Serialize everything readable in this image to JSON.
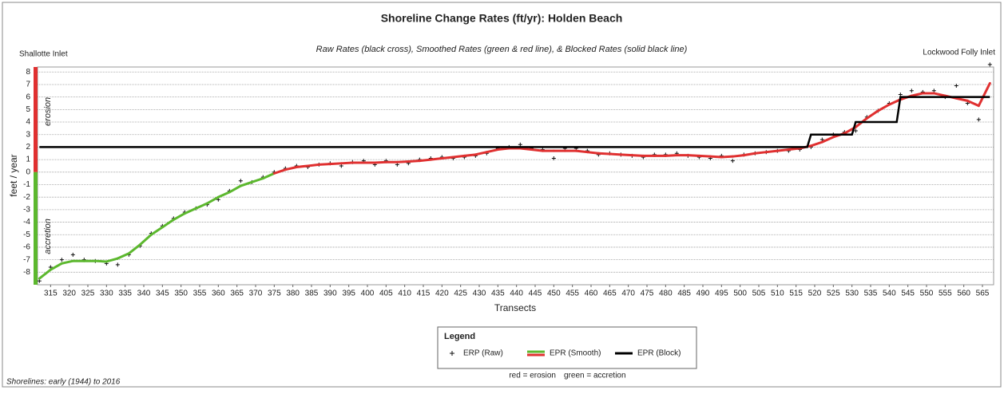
{
  "chart_data": {
    "type": "line",
    "title": "Shoreline Change Rates (ft/yr): Holden Beach",
    "subtitle": "Raw Rates (black cross), Smoothed Rates (green & red line), & Blocked Rates (solid black line)",
    "left_label": "Shallotte Inlet",
    "right_label": "Lockwood Folly Inlet",
    "y_label": "feet / year",
    "x_label": "Transects",
    "erosion_label": "erosion",
    "accretion_label": "accretion",
    "erosion_color": "#e03030",
    "accretion_color": "#5cb82e",
    "footnote": "Shorelines: early (1944) to 2016",
    "legend": {
      "title": "Legend",
      "note_red": "red = erosion",
      "note_green": "green = accretion"
    },
    "x": [
      312,
      315,
      318,
      321,
      324,
      327,
      330,
      333,
      336,
      339,
      342,
      345,
      348,
      351,
      354,
      357,
      360,
      363,
      366,
      369,
      372,
      375,
      378,
      381,
      384,
      387,
      390,
      393,
      396,
      399,
      402,
      405,
      408,
      411,
      414,
      417,
      420,
      423,
      426,
      429,
      432,
      435,
      438,
      441,
      444,
      447,
      450,
      453,
      456,
      459,
      462,
      465,
      468,
      471,
      474,
      477,
      480,
      483,
      486,
      489,
      492,
      495,
      498,
      501,
      504,
      507,
      510,
      513,
      516,
      519,
      522,
      525,
      528,
      531,
      534,
      537,
      540,
      543,
      546,
      549,
      552,
      555,
      558,
      561,
      564,
      567
    ],
    "series": [
      {
        "name": "ERP (Raw)",
        "color": "#111111",
        "marker": "cross",
        "values": [
          -8.7,
          -7.6,
          -7.0,
          -6.6,
          -7.0,
          -7.1,
          -7.3,
          -7.4,
          -6.6,
          -5.9,
          -4.9,
          -4.3,
          -3.7,
          -3.2,
          -2.9,
          -2.6,
          -2.2,
          -1.5,
          -0.7,
          -0.8,
          -0.4,
          0.0,
          0.3,
          0.5,
          0.4,
          0.6,
          0.7,
          0.5,
          0.8,
          0.9,
          0.6,
          0.9,
          0.6,
          0.7,
          1.0,
          1.1,
          1.2,
          1.1,
          1.2,
          1.3,
          1.5,
          1.9,
          2.0,
          2.2,
          1.9,
          1.8,
          1.1,
          1.9,
          1.9,
          1.7,
          1.4,
          1.5,
          1.4,
          1.3,
          1.2,
          1.4,
          1.4,
          1.5,
          1.3,
          1.2,
          1.1,
          1.3,
          0.9,
          1.4,
          1.5,
          1.6,
          1.7,
          1.7,
          1.8,
          2.0,
          2.6,
          3.0,
          3.2,
          3.3,
          4.4,
          4.9,
          5.5,
          6.2,
          6.5,
          6.4,
          6.5,
          6.0,
          6.9,
          5.5,
          4.2,
          8.6
        ]
      },
      {
        "name": "EPR (Smooth)",
        "color": "#e03030",
        "negative_color": "#5cb82e",
        "values": [
          -8.5,
          -7.8,
          -7.3,
          -7.1,
          -7.1,
          -7.1,
          -7.15,
          -6.9,
          -6.5,
          -5.8,
          -5.0,
          -4.4,
          -3.8,
          -3.3,
          -2.9,
          -2.5,
          -2.0,
          -1.6,
          -1.1,
          -0.8,
          -0.5,
          -0.1,
          0.2,
          0.4,
          0.5,
          0.6,
          0.65,
          0.7,
          0.75,
          0.75,
          0.75,
          0.8,
          0.8,
          0.85,
          0.9,
          1.0,
          1.1,
          1.2,
          1.3,
          1.4,
          1.6,
          1.8,
          1.9,
          1.9,
          1.8,
          1.7,
          1.7,
          1.7,
          1.7,
          1.6,
          1.5,
          1.45,
          1.4,
          1.35,
          1.3,
          1.3,
          1.3,
          1.35,
          1.35,
          1.3,
          1.25,
          1.2,
          1.25,
          1.35,
          1.5,
          1.6,
          1.7,
          1.8,
          1.9,
          2.1,
          2.4,
          2.8,
          3.1,
          3.6,
          4.3,
          4.9,
          5.4,
          5.8,
          6.1,
          6.3,
          6.3,
          6.1,
          5.9,
          5.7,
          5.3,
          7.1
        ]
      },
      {
        "name": "EPR (Block)",
        "color": "#000000",
        "x": [
          312,
          518,
          519,
          530,
          531,
          542,
          543,
          567
        ],
        "values": [
          2,
          2,
          3,
          3,
          4,
          4,
          6,
          6
        ]
      }
    ],
    "xlim": [
      311.5,
      568
    ],
    "ylim": [
      -9,
      8.4
    ],
    "xticks": [
      315,
      320,
      325,
      330,
      335,
      340,
      345,
      350,
      355,
      360,
      365,
      370,
      375,
      380,
      385,
      390,
      395,
      400,
      405,
      410,
      415,
      420,
      425,
      430,
      435,
      440,
      445,
      450,
      455,
      460,
      465,
      470,
      475,
      480,
      485,
      490,
      495,
      500,
      505,
      510,
      515,
      520,
      525,
      530,
      535,
      540,
      545,
      550,
      555,
      560,
      565
    ],
    "yticks": [
      -8,
      -7,
      -6,
      -5,
      -4,
      -3,
      -2,
      -1,
      0,
      1,
      2,
      3,
      4,
      5,
      6,
      7,
      8
    ],
    "grid": true
  }
}
